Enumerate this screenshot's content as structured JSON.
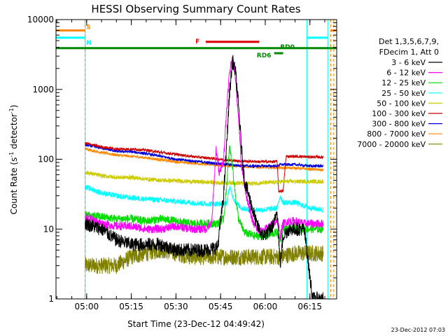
{
  "chart_data": {
    "type": "line",
    "title": "HESSI Observing Summary Count Rates",
    "xlabel": "Start Time (23-Dec-12 04:49:42)",
    "ylabel_main": "Count Rate (s",
    "ylabel_sup1": "-1",
    "ylabel_mid": " detector",
    "ylabel_sup2": "-1",
    "ylabel_end": ")",
    "y_scale": "log",
    "ylim": [
      1,
      10000
    ],
    "xlim": [
      "04:49:42",
      "06:24:00"
    ],
    "x_ticks": [
      {
        "t": "05:00",
        "label": "05:00"
      },
      {
        "t": "05:15",
        "label": "05:15"
      },
      {
        "t": "05:30",
        "label": "05:30"
      },
      {
        "t": "05:45",
        "label": "05:45"
      },
      {
        "t": "06:00",
        "label": "06:00"
      },
      {
        "t": "06:15",
        "label": "06:15"
      }
    ],
    "y_ticks": [
      {
        "v": 1,
        "label": "1"
      },
      {
        "v": 10,
        "label": "10"
      },
      {
        "v": 100,
        "label": "100"
      },
      {
        "v": 1000,
        "label": "1000"
      },
      {
        "v": 10000,
        "label": "10000"
      }
    ],
    "legend_title_1": "Det 1,3,5,6,7,9,",
    "legend_title_2": "FDecim 1, Att 0",
    "legend_position": "right",
    "timestamp": "23-Dec-2012 07:03",
    "series": [
      {
        "name": "3 - 6 keV",
        "color": "#000000",
        "noise": 0.1,
        "points": [
          [
            "04:59:30",
            12
          ],
          [
            "05:05",
            10
          ],
          [
            "05:10",
            7
          ],
          [
            "05:15",
            6
          ],
          [
            "05:20",
            6
          ],
          [
            "05:25",
            6
          ],
          [
            "05:30",
            5
          ],
          [
            "05:35",
            5
          ],
          [
            "05:40",
            5
          ],
          [
            "05:44",
            5.5
          ],
          [
            "05:46",
            30
          ],
          [
            "05:47",
            150
          ],
          [
            "05:48",
            900
          ],
          [
            "05:49",
            2500
          ],
          [
            "05:50",
            1800
          ],
          [
            "05:51",
            600
          ],
          [
            "05:52",
            150
          ],
          [
            "05:53",
            50
          ],
          [
            "05:55",
            25
          ],
          [
            "05:57",
            12
          ],
          [
            "05:59",
            8
          ],
          [
            "06:01",
            9
          ],
          [
            "06:03",
            12
          ],
          [
            "06:04",
            20
          ],
          [
            "06:05",
            3
          ],
          [
            "06:06",
            8
          ],
          [
            "06:08",
            10
          ],
          [
            "06:10",
            10
          ],
          [
            "06:13",
            10
          ],
          [
            "06:14",
            5
          ],
          [
            "06:15",
            2
          ],
          [
            "06:16",
            1
          ],
          [
            "06:18",
            1
          ],
          [
            "06:19:30",
            1
          ]
        ]
      },
      {
        "name": "6 - 12 keV",
        "color": "#ff00ff",
        "noise": 0.06,
        "points": [
          [
            "04:59:30",
            15
          ],
          [
            "05:05",
            12
          ],
          [
            "05:10",
            11
          ],
          [
            "05:15",
            11
          ],
          [
            "05:20",
            10
          ],
          [
            "05:25",
            10
          ],
          [
            "05:30",
            11
          ],
          [
            "05:35",
            10
          ],
          [
            "05:40",
            10
          ],
          [
            "05:42",
            12
          ],
          [
            "05:43:30",
            140
          ],
          [
            "05:44:30",
            60
          ],
          [
            "05:46",
            100
          ],
          [
            "05:47",
            500
          ],
          [
            "05:48",
            1800
          ],
          [
            "05:49",
            3000
          ],
          [
            "05:50",
            1500
          ],
          [
            "05:51",
            400
          ],
          [
            "05:52",
            80
          ],
          [
            "05:54",
            25
          ],
          [
            "05:56",
            12
          ],
          [
            "05:58",
            9
          ],
          [
            "06:00",
            10
          ],
          [
            "06:03",
            12
          ],
          [
            "06:04",
            14
          ],
          [
            "06:05",
            8
          ],
          [
            "06:06",
            12
          ],
          [
            "06:08",
            13
          ],
          [
            "06:10",
            13
          ],
          [
            "06:13",
            12
          ],
          [
            "06:14",
            12
          ],
          [
            "06:15",
            12
          ],
          [
            "06:19:30",
            12
          ]
        ]
      },
      {
        "name": "12 - 25 keV",
        "color": "#00dd00",
        "noise": 0.06,
        "points": [
          [
            "04:59:30",
            16
          ],
          [
            "05:05",
            15
          ],
          [
            "05:10",
            14
          ],
          [
            "05:15",
            14
          ],
          [
            "05:20",
            13
          ],
          [
            "05:25",
            14
          ],
          [
            "05:30",
            13
          ],
          [
            "05:35",
            12
          ],
          [
            "05:40",
            12
          ],
          [
            "05:44",
            12
          ],
          [
            "05:46",
            14
          ],
          [
            "05:47",
            40
          ],
          [
            "05:48",
            150
          ],
          [
            "05:49",
            80
          ],
          [
            "05:50",
            30
          ],
          [
            "05:51",
            14
          ],
          [
            "05:53",
            9
          ],
          [
            "05:56",
            8
          ],
          [
            "06:00",
            8
          ],
          [
            "06:04",
            9
          ],
          [
            "06:05",
            7
          ],
          [
            "06:06",
            10
          ],
          [
            "06:10",
            10
          ],
          [
            "06:15",
            10
          ],
          [
            "06:19:30",
            10
          ]
        ]
      },
      {
        "name": "25 - 50 keV",
        "color": "#00ffff",
        "noise": 0.04,
        "points": [
          [
            "04:59:30",
            40
          ],
          [
            "05:05",
            33
          ],
          [
            "05:10",
            30
          ],
          [
            "05:15",
            28
          ],
          [
            "05:20",
            27
          ],
          [
            "05:25",
            26
          ],
          [
            "05:30",
            25
          ],
          [
            "05:35",
            24
          ],
          [
            "05:40",
            23
          ],
          [
            "05:45",
            23
          ],
          [
            "05:47",
            23
          ],
          [
            "05:48",
            40
          ],
          [
            "05:49",
            30
          ],
          [
            "05:50",
            24
          ],
          [
            "05:52",
            20
          ],
          [
            "05:55",
            19
          ],
          [
            "06:00",
            19
          ],
          [
            "06:04",
            20
          ],
          [
            "06:05",
            30
          ],
          [
            "06:06",
            24
          ],
          [
            "06:10",
            24
          ],
          [
            "06:15",
            20
          ],
          [
            "06:19:30",
            19
          ]
        ]
      },
      {
        "name": "50 - 100 keV",
        "color": "#cccc00",
        "noise": 0.03,
        "points": [
          [
            "04:59:30",
            65
          ],
          [
            "05:05",
            58
          ],
          [
            "05:10",
            55
          ],
          [
            "05:15",
            55
          ],
          [
            "05:20",
            52
          ],
          [
            "05:25",
            50
          ],
          [
            "05:30",
            49
          ],
          [
            "05:35",
            48
          ],
          [
            "05:40",
            47
          ],
          [
            "05:45",
            46
          ],
          [
            "05:50",
            46
          ],
          [
            "05:55",
            45
          ],
          [
            "06:00",
            46
          ],
          [
            "06:04",
            47
          ],
          [
            "06:05",
            48
          ],
          [
            "06:06",
            48
          ],
          [
            "06:10",
            48
          ],
          [
            "06:15",
            48
          ],
          [
            "06:19:30",
            48
          ]
        ]
      },
      {
        "name": "100 - 300 keV",
        "color": "#cc0000",
        "noise": 0.02,
        "points": [
          [
            "04:59:30",
            170
          ],
          [
            "05:05",
            150
          ],
          [
            "05:10",
            140
          ],
          [
            "05:15",
            140
          ],
          [
            "05:20",
            135
          ],
          [
            "05:25",
            125
          ],
          [
            "05:30",
            118
          ],
          [
            "05:35",
            110
          ],
          [
            "05:40",
            105
          ],
          [
            "05:45",
            100
          ],
          [
            "05:50",
            95
          ],
          [
            "05:55",
            93
          ],
          [
            "06:00",
            92
          ],
          [
            "06:04",
            93
          ],
          [
            "06:04:30",
            35
          ],
          [
            "06:06",
            35
          ],
          [
            "06:07",
            110
          ],
          [
            "06:10",
            110
          ],
          [
            "06:15",
            108
          ],
          [
            "06:19:30",
            107
          ]
        ]
      },
      {
        "name": "300 - 800 keV",
        "color": "#0000dd",
        "noise": 0.02,
        "points": [
          [
            "04:59:30",
            160
          ],
          [
            "05:05",
            145
          ],
          [
            "05:10",
            130
          ],
          [
            "05:15",
            128
          ],
          [
            "05:20",
            120
          ],
          [
            "05:25",
            110
          ],
          [
            "05:30",
            100
          ],
          [
            "05:35",
            95
          ],
          [
            "05:40",
            90
          ],
          [
            "05:45",
            86
          ],
          [
            "05:50",
            82
          ],
          [
            "05:55",
            80
          ],
          [
            "06:00",
            80
          ],
          [
            "06:04",
            80
          ],
          [
            "06:05",
            84
          ],
          [
            "06:10",
            84
          ],
          [
            "06:15",
            80
          ],
          [
            "06:19:30",
            80
          ]
        ]
      },
      {
        "name": "800 - 7000 keV",
        "color": "#ff8800",
        "noise": 0.02,
        "points": [
          [
            "04:59:30",
            140
          ],
          [
            "05:05",
            125
          ],
          [
            "05:10",
            115
          ],
          [
            "05:15",
            110
          ],
          [
            "05:20",
            105
          ],
          [
            "05:25",
            98
          ],
          [
            "05:30",
            92
          ],
          [
            "05:35",
            88
          ],
          [
            "05:40",
            85
          ],
          [
            "05:45",
            82
          ],
          [
            "05:50",
            80
          ],
          [
            "05:55",
            78
          ],
          [
            "06:00",
            76
          ],
          [
            "06:04",
            76
          ],
          [
            "06:05",
            75
          ],
          [
            "06:10",
            75
          ],
          [
            "06:15",
            72
          ],
          [
            "06:19:30",
            70
          ]
        ]
      },
      {
        "name": "7000 - 20000 keV",
        "color": "#808000",
        "noise": 0.12,
        "points": [
          [
            "04:59:30",
            3
          ],
          [
            "05:05",
            3
          ],
          [
            "05:10",
            3
          ],
          [
            "05:15",
            4
          ],
          [
            "05:20",
            4.5
          ],
          [
            "05:25",
            5
          ],
          [
            "05:30",
            4.5
          ],
          [
            "05:35",
            4
          ],
          [
            "05:40",
            4
          ],
          [
            "05:45",
            4
          ],
          [
            "05:50",
            4
          ],
          [
            "05:55",
            4
          ],
          [
            "06:00",
            4
          ],
          [
            "06:05",
            4
          ],
          [
            "06:10",
            4.5
          ],
          [
            "06:15",
            4.5
          ],
          [
            "06:19:30",
            4.5
          ]
        ]
      }
    ],
    "flags": [
      {
        "label": "S",
        "color": "#ff8800",
        "y": 7000,
        "segments": [
          [
            "04:49:42",
            "04:59:30"
          ],
          [
            "06:22",
            "06:24:00"
          ]
        ]
      },
      {
        "label": "N",
        "color": "#00ffff",
        "y": 5500,
        "segments": [
          [
            "04:49:42",
            "04:59:30"
          ],
          [
            "06:14",
            "06:21"
          ]
        ]
      },
      {
        "label": "F",
        "color": "#dd0000",
        "y": 4800,
        "segments": [
          [
            "05:40",
            "05:58"
          ]
        ]
      },
      {
        "label": "RD6",
        "color": "#008800",
        "y": 3300,
        "segments": [
          [
            "06:03",
            "06:06"
          ]
        ]
      },
      {
        "label": "RD0",
        "color": "#008800",
        "y": 3900,
        "segments": [
          [
            "04:49:42",
            "06:24:00"
          ]
        ]
      }
    ],
    "vlines": [
      {
        "t": "04:49:42",
        "color": "#00ffff",
        "style": "solid"
      },
      {
        "t": "04:59:30",
        "color": "#00ffff",
        "style": "solid"
      },
      {
        "t": "04:59:30",
        "color": "#ff8800",
        "style": "dashed"
      },
      {
        "t": "06:14",
        "color": "#00ffff",
        "style": "solid"
      },
      {
        "t": "06:21",
        "color": "#00ffff",
        "style": "solid"
      },
      {
        "t": "06:22",
        "color": "#ff8800",
        "style": "dashed"
      },
      {
        "t": "06:23",
        "color": "#ff8800",
        "style": "dashed"
      }
    ]
  }
}
